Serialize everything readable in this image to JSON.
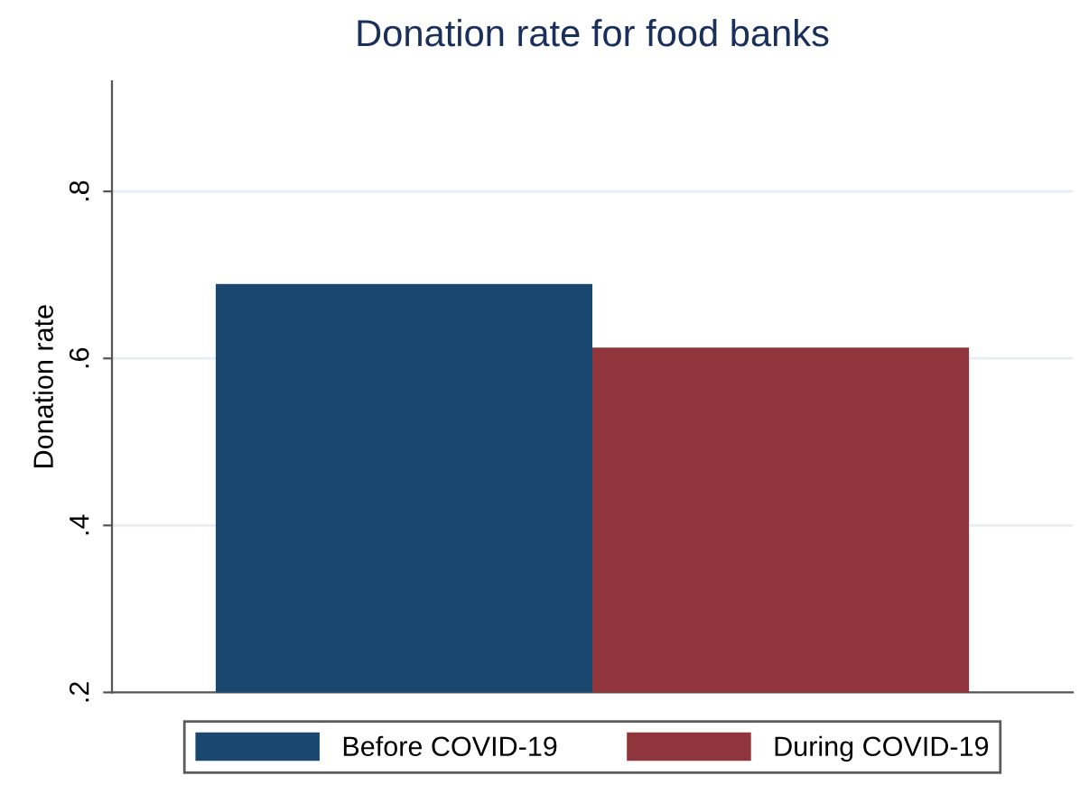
{
  "chart_data": {
    "type": "bar",
    "title": "Donation rate for food banks",
    "ylabel": "Donation rate",
    "categories": [
      null
    ],
    "series": [
      {
        "name": "Before COVID-19",
        "color": "#1a476f",
        "values": [
          0.689
        ]
      },
      {
        "name": "During COVID-19",
        "color": "#90353b",
        "values": [
          0.613
        ]
      }
    ],
    "ylim": [
      0.2,
      0.932
    ],
    "yticks": [
      {
        "value": 0.2,
        "label": ".2"
      },
      {
        "value": 0.4,
        "label": ".4"
      },
      {
        "value": 0.6,
        "label": ".6"
      },
      {
        "value": 0.8,
        "label": ".8"
      }
    ],
    "grid": "y",
    "legend": "bottom",
    "tick_labels": "y"
  }
}
